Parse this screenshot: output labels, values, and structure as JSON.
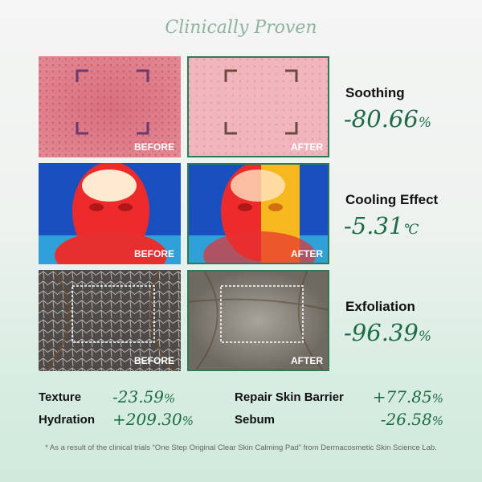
{
  "header": {
    "title": "Clinically Proven"
  },
  "panels": [
    {
      "before_label": "BEFORE",
      "after_label": "AFTER",
      "metric": "Soothing",
      "value": "-80.66",
      "unit": "%"
    },
    {
      "before_label": "BEFORE",
      "after_label": "AFTER",
      "metric": "Cooling Effect",
      "value": "-5.31",
      "unit": "℃"
    },
    {
      "before_label": "BEFORE",
      "after_label": "AFTER",
      "metric": "Exfoliation",
      "value": "-96.39",
      "unit": "%"
    }
  ],
  "stats": [
    {
      "label": "Texture",
      "value": "-23.59",
      "unit": "%"
    },
    {
      "label": "Hydration",
      "value": "+209.30",
      "unit": "%"
    },
    {
      "label": "Repair Skin Barrier",
      "value": "+77.85",
      "unit": "%"
    },
    {
      "label": "Sebum",
      "value": "-26.58",
      "unit": "%"
    }
  ],
  "footnote": "* As a result of the clinical trials “One Step Original Clear Skin Calming Pad” from Dermacosmetic Skin Science Lab."
}
